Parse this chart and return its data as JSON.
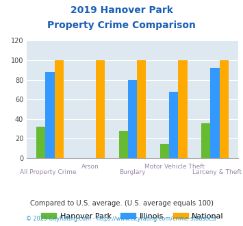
{
  "title_line1": "2019 Hanover Park",
  "title_line2": "Property Crime Comparison",
  "categories": [
    "All Property Crime",
    "Arson",
    "Burglary",
    "Motor Vehicle Theft",
    "Larceny & Theft"
  ],
  "hanover_park": [
    32,
    0,
    28,
    15,
    36
  ],
  "illinois": [
    88,
    0,
    80,
    68,
    92
  ],
  "national": [
    100,
    100,
    100,
    100,
    100
  ],
  "hanover_color": "#66bb33",
  "illinois_color": "#3399ff",
  "national_color": "#ffaa00",
  "title_color": "#1a5fb4",
  "bg_color": "#dde8f0",
  "ylim": [
    0,
    120
  ],
  "yticks": [
    0,
    20,
    40,
    60,
    80,
    100,
    120
  ],
  "legend_labels": [
    "Hanover Park",
    "Illinois",
    "National"
  ],
  "footnote1": "Compared to U.S. average. (U.S. average equals 100)",
  "footnote2": "© 2025 CityRating.com - https://www.cityrating.com/crime-statistics/",
  "footnote1_color": "#333333",
  "footnote2_color": "#3399cc",
  "xlabel_color": "#9988aa",
  "bar_width": 0.22
}
